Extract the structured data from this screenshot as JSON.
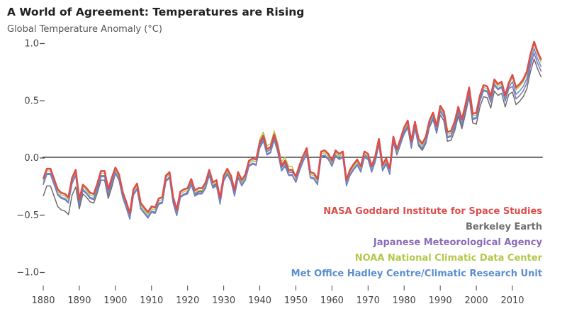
{
  "chart_data": {
    "type": "line",
    "title": "A World of Agreement: Temperatures are Rising",
    "ylabel": "Global Temperature Anomaly (°C)",
    "xlabel": "",
    "xlim": [
      1880,
      2018
    ],
    "ylim": [
      -1.0,
      1.0
    ],
    "x": {
      "start": 1880,
      "end": 2018,
      "step": 1
    },
    "xticks": [
      "1880",
      "1890",
      "1900",
      "1910",
      "1920",
      "1930",
      "1940",
      "1950",
      "1960",
      "1970",
      "1980",
      "1990",
      "2000",
      "2010"
    ],
    "yticks": [
      {
        "value": 1.0,
        "label": "1.0"
      },
      {
        "value": 0.5,
        "label": "0.5"
      },
      {
        "value": 0.0,
        "label": "0.0"
      },
      {
        "value": -0.5,
        "label": "−0.5"
      },
      {
        "value": -1.0,
        "label": "−1.0"
      }
    ],
    "zero_line": true,
    "grid": false,
    "legend_position": "bottom-right",
    "series": [
      {
        "name": "NASA Goddard Institute for Space Studies",
        "color": "#dc4f4b",
        "values": [
          -0.19,
          -0.1,
          -0.1,
          -0.19,
          -0.28,
          -0.31,
          -0.32,
          -0.35,
          -0.18,
          -0.11,
          -0.37,
          -0.24,
          -0.27,
          -0.31,
          -0.32,
          -0.23,
          -0.12,
          -0.12,
          -0.28,
          -0.18,
          -0.09,
          -0.15,
          -0.3,
          -0.39,
          -0.49,
          -0.28,
          -0.23,
          -0.4,
          -0.44,
          -0.48,
          -0.43,
          -0.44,
          -0.36,
          -0.35,
          -0.16,
          -0.13,
          -0.35,
          -0.46,
          -0.3,
          -0.28,
          -0.27,
          -0.19,
          -0.29,
          -0.27,
          -0.27,
          -0.22,
          -0.11,
          -0.22,
          -0.2,
          -0.36,
          -0.16,
          -0.1,
          -0.16,
          -0.29,
          -0.13,
          -0.2,
          -0.15,
          -0.03,
          -0.01,
          -0.02,
          0.13,
          0.19,
          0.07,
          0.09,
          0.2,
          0.09,
          -0.07,
          -0.03,
          -0.11,
          -0.11,
          -0.17,
          -0.07,
          0.01,
          0.08,
          -0.13,
          -0.14,
          -0.19,
          0.05,
          0.06,
          0.03,
          -0.03,
          0.06,
          0.03,
          0.05,
          -0.2,
          -0.11,
          -0.06,
          -0.02,
          -0.08,
          0.05,
          0.03,
          -0.08,
          0.01,
          0.16,
          -0.07,
          -0.01,
          -0.1,
          0.18,
          0.07,
          0.16,
          0.26,
          0.32,
          0.14,
          0.31,
          0.16,
          0.12,
          0.18,
          0.32,
          0.39,
          0.27,
          0.45,
          0.4,
          0.22,
          0.23,
          0.31,
          0.44,
          0.33,
          0.46,
          0.61,
          0.38,
          0.39,
          0.54,
          0.63,
          0.62,
          0.53,
          0.68,
          0.64,
          0.66,
          0.54,
          0.65,
          0.72,
          0.61,
          0.64,
          0.68,
          0.75,
          0.9,
          1.01,
          0.92,
          0.85
        ]
      },
      {
        "name": "Berkeley Earth",
        "color": "#6e6e6e",
        "values": [
          -0.34,
          -0.25,
          -0.25,
          -0.34,
          -0.43,
          -0.46,
          -0.47,
          -0.5,
          -0.33,
          -0.26,
          -0.45,
          -0.32,
          -0.35,
          -0.39,
          -0.4,
          -0.31,
          -0.2,
          -0.2,
          -0.36,
          -0.26,
          -0.14,
          -0.2,
          -0.35,
          -0.44,
          -0.54,
          -0.33,
          -0.28,
          -0.45,
          -0.49,
          -0.53,
          -0.48,
          -0.49,
          -0.41,
          -0.4,
          -0.21,
          -0.18,
          -0.4,
          -0.51,
          -0.35,
          -0.33,
          -0.3,
          -0.22,
          -0.32,
          -0.3,
          -0.3,
          -0.25,
          -0.14,
          -0.25,
          -0.23,
          -0.39,
          -0.18,
          -0.12,
          -0.18,
          -0.31,
          -0.15,
          -0.22,
          -0.17,
          -0.05,
          -0.03,
          -0.04,
          0.11,
          0.17,
          0.05,
          0.07,
          0.18,
          0.07,
          -0.09,
          -0.05,
          -0.13,
          -0.13,
          -0.17,
          -0.07,
          0.01,
          0.08,
          -0.13,
          -0.14,
          -0.19,
          0.05,
          0.06,
          0.03,
          -0.05,
          0.04,
          0.01,
          0.03,
          -0.22,
          -0.13,
          -0.08,
          -0.04,
          -0.1,
          0.03,
          -0.01,
          -0.12,
          -0.03,
          0.12,
          -0.11,
          -0.05,
          -0.14,
          0.14,
          0.03,
          0.12,
          0.2,
          0.26,
          0.08,
          0.25,
          0.1,
          0.06,
          0.12,
          0.26,
          0.33,
          0.21,
          0.37,
          0.32,
          0.14,
          0.15,
          0.23,
          0.36,
          0.25,
          0.38,
          0.53,
          0.3,
          0.29,
          0.44,
          0.53,
          0.52,
          0.43,
          0.58,
          0.54,
          0.56,
          0.44,
          0.55,
          0.57,
          0.46,
          0.49,
          0.53,
          0.6,
          0.75,
          0.86,
          0.77,
          0.7
        ]
      },
      {
        "name": "Japanese Meteorological Agency",
        "color": "#8a6cb8",
        "values": [
          -0.24,
          -0.15,
          -0.15,
          -0.24,
          -0.33,
          -0.36,
          -0.37,
          -0.4,
          -0.23,
          -0.16,
          -0.42,
          -0.29,
          -0.32,
          -0.36,
          -0.37,
          -0.28,
          -0.17,
          -0.17,
          -0.33,
          -0.23,
          -0.14,
          -0.2,
          -0.35,
          -0.44,
          -0.54,
          -0.33,
          -0.28,
          -0.45,
          -0.49,
          -0.53,
          -0.48,
          -0.49,
          -0.41,
          -0.4,
          -0.21,
          -0.18,
          -0.4,
          -0.51,
          -0.35,
          -0.33,
          -0.32,
          -0.24,
          -0.34,
          -0.32,
          -0.32,
          -0.27,
          -0.16,
          -0.27,
          -0.25,
          -0.41,
          -0.21,
          -0.15,
          -0.21,
          -0.34,
          -0.18,
          -0.25,
          -0.2,
          -0.08,
          -0.06,
          -0.07,
          0.08,
          0.14,
          0.02,
          0.04,
          0.15,
          0.04,
          -0.12,
          -0.08,
          -0.16,
          -0.16,
          -0.22,
          -0.12,
          -0.04,
          0.03,
          -0.18,
          -0.19,
          -0.24,
          0.0,
          0.01,
          -0.02,
          -0.08,
          0.01,
          -0.02,
          0.0,
          -0.25,
          -0.16,
          -0.11,
          -0.07,
          -0.13,
          0.0,
          -0.02,
          -0.13,
          -0.04,
          0.11,
          -0.12,
          -0.06,
          -0.15,
          0.13,
          0.02,
          0.11,
          0.21,
          0.27,
          0.09,
          0.26,
          0.11,
          0.07,
          0.13,
          0.27,
          0.34,
          0.22,
          0.4,
          0.35,
          0.17,
          0.18,
          0.26,
          0.39,
          0.28,
          0.41,
          0.56,
          0.33,
          0.34,
          0.49,
          0.58,
          0.57,
          0.48,
          0.63,
          0.59,
          0.61,
          0.49,
          0.6,
          0.62,
          0.51,
          0.54,
          0.58,
          0.65,
          0.8,
          0.91,
          0.82,
          0.75
        ]
      },
      {
        "name": "NOAA National Climatic Data Center",
        "color": "#b3c84a",
        "values": [
          -0.21,
          -0.12,
          -0.12,
          -0.21,
          -0.3,
          -0.33,
          -0.34,
          -0.37,
          -0.2,
          -0.13,
          -0.39,
          -0.26,
          -0.29,
          -0.33,
          -0.34,
          -0.25,
          -0.14,
          -0.14,
          -0.3,
          -0.2,
          -0.11,
          -0.17,
          -0.32,
          -0.41,
          -0.51,
          -0.3,
          -0.25,
          -0.42,
          -0.46,
          -0.5,
          -0.45,
          -0.46,
          -0.38,
          -0.37,
          -0.18,
          -0.15,
          -0.37,
          -0.48,
          -0.32,
          -0.3,
          -0.29,
          -0.21,
          -0.31,
          -0.29,
          -0.29,
          -0.24,
          -0.13,
          -0.24,
          -0.22,
          -0.38,
          -0.18,
          -0.12,
          -0.18,
          -0.31,
          -0.15,
          -0.22,
          -0.17,
          -0.05,
          -0.03,
          -0.04,
          0.16,
          0.22,
          0.1,
          0.12,
          0.23,
          0.12,
          -0.04,
          0.0,
          -0.08,
          -0.08,
          -0.19,
          -0.09,
          -0.01,
          0.06,
          -0.15,
          -0.16,
          -0.21,
          0.03,
          0.04,
          0.01,
          -0.05,
          0.04,
          0.01,
          0.03,
          -0.22,
          -0.13,
          -0.08,
          -0.04,
          -0.1,
          0.03,
          0.01,
          -0.1,
          -0.01,
          0.14,
          -0.09,
          -0.03,
          -0.12,
          0.16,
          0.05,
          0.14,
          0.24,
          0.3,
          0.12,
          0.29,
          0.14,
          0.1,
          0.16,
          0.3,
          0.37,
          0.25,
          0.43,
          0.38,
          0.2,
          0.21,
          0.29,
          0.42,
          0.31,
          0.44,
          0.59,
          0.36,
          0.37,
          0.52,
          0.61,
          0.6,
          0.51,
          0.66,
          0.62,
          0.64,
          0.52,
          0.63,
          0.7,
          0.59,
          0.62,
          0.66,
          0.73,
          0.88,
          0.99,
          0.9,
          0.83
        ]
      },
      {
        "name": "Met Office Hadley Centre/Climatic Research Unit",
        "color": "#5b8ed0",
        "values": [
          -0.23,
          -0.14,
          -0.14,
          -0.23,
          -0.32,
          -0.35,
          -0.36,
          -0.39,
          -0.22,
          -0.15,
          -0.41,
          -0.28,
          -0.31,
          -0.35,
          -0.36,
          -0.27,
          -0.16,
          -0.16,
          -0.32,
          -0.22,
          -0.13,
          -0.19,
          -0.34,
          -0.43,
          -0.53,
          -0.32,
          -0.27,
          -0.44,
          -0.48,
          -0.52,
          -0.47,
          -0.48,
          -0.4,
          -0.39,
          -0.2,
          -0.17,
          -0.39,
          -0.5,
          -0.34,
          -0.32,
          -0.31,
          -0.23,
          -0.33,
          -0.31,
          -0.31,
          -0.26,
          -0.15,
          -0.26,
          -0.24,
          -0.4,
          -0.2,
          -0.14,
          -0.2,
          -0.33,
          -0.17,
          -0.24,
          -0.19,
          -0.07,
          -0.05,
          -0.06,
          0.09,
          0.15,
          0.03,
          0.05,
          0.16,
          0.05,
          -0.11,
          -0.07,
          -0.15,
          -0.15,
          -0.21,
          -0.11,
          -0.03,
          0.04,
          -0.17,
          -0.18,
          -0.23,
          0.01,
          0.02,
          -0.01,
          -0.07,
          0.02,
          -0.01,
          0.01,
          -0.24,
          -0.15,
          -0.1,
          -0.06,
          -0.12,
          0.01,
          -0.01,
          -0.12,
          -0.03,
          0.12,
          -0.11,
          -0.05,
          -0.14,
          0.14,
          0.03,
          0.12,
          0.22,
          0.28,
          0.1,
          0.27,
          0.12,
          0.08,
          0.14,
          0.28,
          0.35,
          0.23,
          0.41,
          0.36,
          0.18,
          0.19,
          0.27,
          0.4,
          0.29,
          0.42,
          0.57,
          0.34,
          0.35,
          0.5,
          0.59,
          0.58,
          0.49,
          0.64,
          0.6,
          0.62,
          0.5,
          0.61,
          0.66,
          0.55,
          0.58,
          0.62,
          0.69,
          0.84,
          0.95,
          0.86,
          0.79
        ]
      }
    ],
    "draw_order": [
      1,
      2,
      3,
      4,
      0
    ]
  }
}
